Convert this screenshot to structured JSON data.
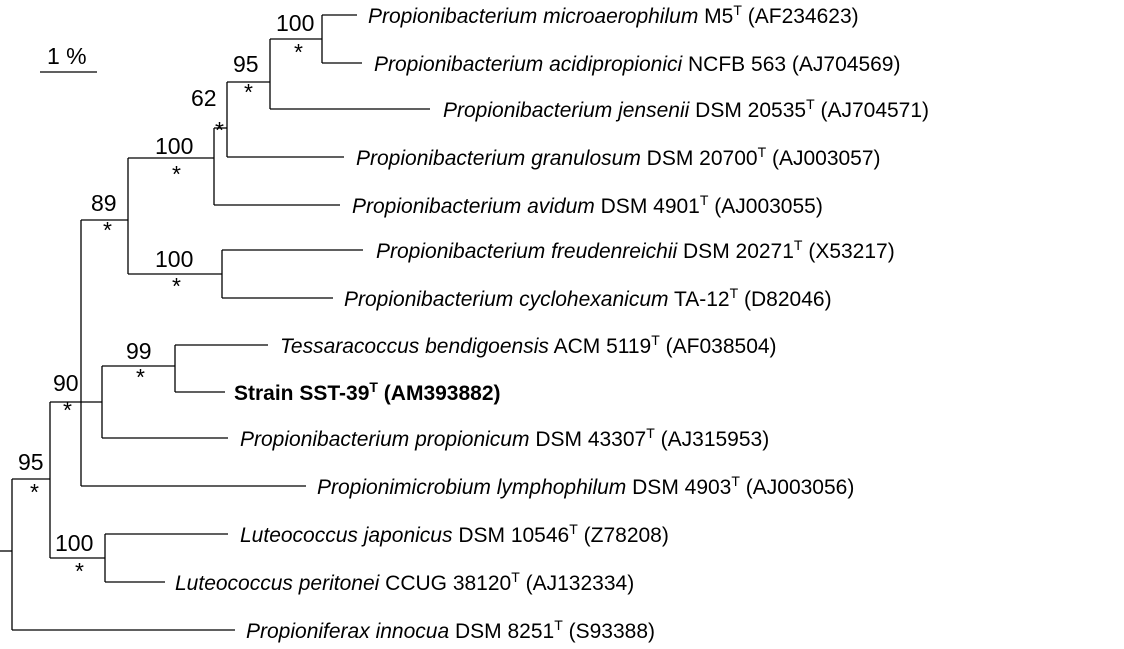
{
  "scale_bar": {
    "label": "1 %"
  },
  "taxa": [
    {
      "genus_species": "Propionibacterium microaerophilum",
      "strain": "M5",
      "type_strain": "T",
      "accession": "(AF234623)",
      "bold": false,
      "italic": true
    },
    {
      "genus_species": "Propionibacterium acidipropionici",
      "strain": "NCFB 563",
      "type_strain": "",
      "accession": "(AJ704569)",
      "bold": false,
      "italic": true
    },
    {
      "genus_species": "Propionibacterium jensenii",
      "strain": "DSM 20535",
      "type_strain": "T",
      "accession": "(AJ704571)",
      "bold": false,
      "italic": true
    },
    {
      "genus_species": "Propionibacterium granulosum",
      "strain": "DSM 20700",
      "type_strain": "T",
      "accession": "(AJ003057)",
      "bold": false,
      "italic": true
    },
    {
      "genus_species": "Propionibacterium avidum",
      "strain": "DSM 4901",
      "type_strain": "T",
      "accession": "(AJ003055)",
      "bold": false,
      "italic": true
    },
    {
      "genus_species": "Propionibacterium freudenreichii",
      "strain": "DSM 20271",
      "type_strain": "T",
      "accession": "(X53217)",
      "bold": false,
      "italic": true
    },
    {
      "genus_species": "Propionibacterium cyclohexanicum",
      "strain": "TA-12",
      "type_strain": "T",
      "accession": "(D82046)",
      "bold": false,
      "italic": true
    },
    {
      "genus_species": "Tessaracoccus bendigoensis",
      "strain": "ACM 5119",
      "type_strain": "T",
      "accession": "(AF038504)",
      "bold": false,
      "italic": true
    },
    {
      "genus_species": "",
      "strain": "Strain SST-39",
      "type_strain": "T",
      "accession": "(AM393882)",
      "bold": true,
      "italic": false
    },
    {
      "genus_species": "Propionibacterium propionicum",
      "strain": "DSM 43307",
      "type_strain": "T",
      "accession": "(AJ315953)",
      "bold": false,
      "italic": true
    },
    {
      "genus_species": "Propionimicrobium lymphophilum",
      "strain": "DSM 4903",
      "type_strain": "T",
      "accession": "(AJ003056)",
      "bold": false,
      "italic": true
    },
    {
      "genus_species": "Luteococcus japonicus",
      "strain": "DSM 10546",
      "type_strain": "T",
      "accession": "(Z78208)",
      "bold": false,
      "italic": true
    },
    {
      "genus_species": "Luteococcus peritonei",
      "strain": "CCUG 38120",
      "type_strain": "T",
      "accession": "(AJ132334)",
      "bold": false,
      "italic": true
    },
    {
      "genus_species": "Propioniferax innocua",
      "strain": "DSM 8251",
      "type_strain": "T",
      "accession": "(S93388)",
      "bold": false,
      "italic": true
    }
  ],
  "nodes": [
    {
      "bootstrap": "100",
      "mark": "*"
    },
    {
      "bootstrap": "95",
      "mark": "*"
    },
    {
      "bootstrap": "62",
      "mark": "*"
    },
    {
      "bootstrap": "100",
      "mark": "*"
    },
    {
      "bootstrap": "89",
      "mark": "*"
    },
    {
      "bootstrap": "100",
      "mark": "*"
    },
    {
      "bootstrap": "99",
      "mark": "*"
    },
    {
      "bootstrap": "90",
      "mark": "*"
    },
    {
      "bootstrap": "100",
      "mark": "*"
    },
    {
      "bootstrap": "95",
      "mark": "*"
    }
  ]
}
